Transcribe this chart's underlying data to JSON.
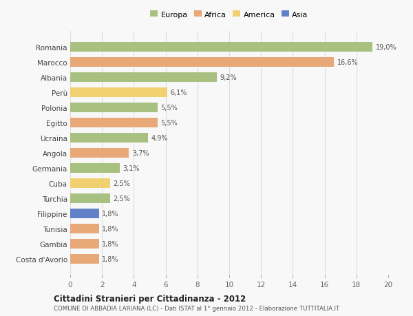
{
  "countries": [
    "Romania",
    "Marocco",
    "Albania",
    "Perù",
    "Polonia",
    "Egitto",
    "Ucraina",
    "Angola",
    "Germania",
    "Cuba",
    "Turchia",
    "Filippine",
    "Tunisia",
    "Gambia",
    "Costa d'Avorio"
  ],
  "values": [
    19.0,
    16.6,
    9.2,
    6.1,
    5.5,
    5.5,
    4.9,
    3.7,
    3.1,
    2.5,
    2.5,
    1.8,
    1.8,
    1.8,
    1.8
  ],
  "labels": [
    "19,0%",
    "16,6%",
    "9,2%",
    "6,1%",
    "5,5%",
    "5,5%",
    "4,9%",
    "3,7%",
    "3,1%",
    "2,5%",
    "2,5%",
    "1,8%",
    "1,8%",
    "1,8%",
    "1,8%"
  ],
  "continents": [
    "Europa",
    "Africa",
    "Europa",
    "America",
    "Europa",
    "Africa",
    "Europa",
    "Africa",
    "Europa",
    "America",
    "Europa",
    "Asia",
    "Africa",
    "Africa",
    "Africa"
  ],
  "colors": {
    "Europa": "#a8c080",
    "Africa": "#e8a878",
    "America": "#f0d070",
    "Asia": "#6080c8"
  },
  "legend_labels": [
    "Europa",
    "Africa",
    "America",
    "Asia"
  ],
  "legend_colors": [
    "#a8c080",
    "#e8a878",
    "#f0d070",
    "#6080c8"
  ],
  "title": "Cittadini Stranieri per Cittadinanza - 2012",
  "subtitle": "COMUNE DI ABBADIA LARIANA (LC) - Dati ISTAT al 1° gennaio 2012 - Elaborazione TUTTITALIA.IT",
  "xlim": [
    0,
    20
  ],
  "xticks": [
    0,
    2,
    4,
    6,
    8,
    10,
    12,
    14,
    16,
    18,
    20
  ],
  "bg_color": "#f8f8f8",
  "grid_color": "#dddddd"
}
